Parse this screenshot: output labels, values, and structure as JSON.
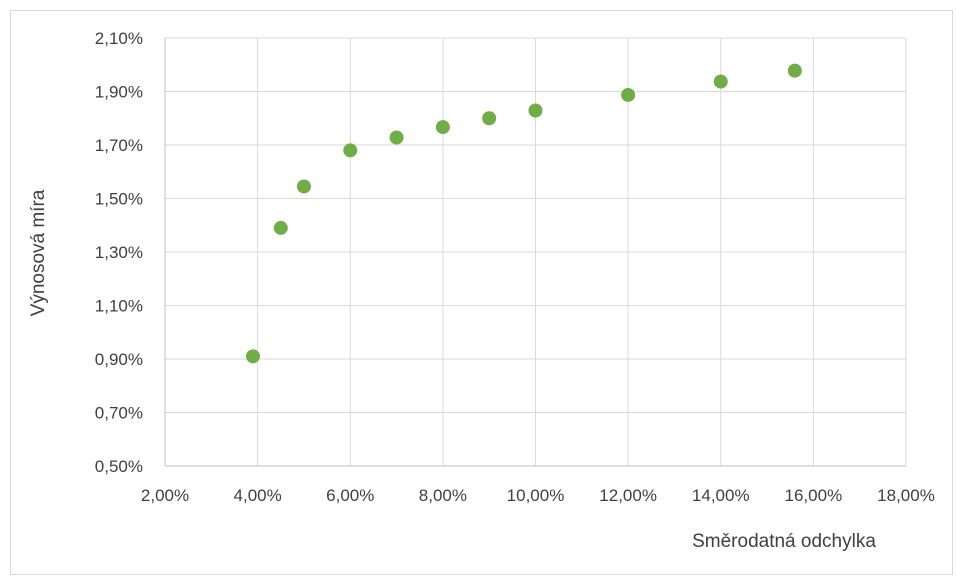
{
  "chart_data": {
    "type": "scatter",
    "title": "",
    "xlabel": "Směrodatná odchylka",
    "ylabel": "Výnosová míra",
    "xlim": [
      0.02,
      0.18
    ],
    "ylim": [
      0.005,
      0.021
    ],
    "x_ticks": [
      0.02,
      0.04,
      0.06,
      0.08,
      0.1,
      0.12,
      0.14,
      0.16,
      0.18
    ],
    "y_ticks": [
      0.005,
      0.007,
      0.009,
      0.011,
      0.013,
      0.015,
      0.017,
      0.019,
      0.021
    ],
    "x_tick_labels": [
      "2,00%",
      "4,00%",
      "6,00%",
      "8,00%",
      "10,00%",
      "12,00%",
      "14,00%",
      "16,00%",
      "18,00%"
    ],
    "y_tick_labels": [
      "0,50%",
      "0,70%",
      "0,90%",
      "1,10%",
      "1,30%",
      "1,50%",
      "1,70%",
      "1,90%",
      "2,10%"
    ],
    "grid": true,
    "marker_color": "#70ad47",
    "points": [
      {
        "x": 0.039,
        "y": 0.0091
      },
      {
        "x": 0.045,
        "y": 0.0139
      },
      {
        "x": 0.05,
        "y": 0.01545
      },
      {
        "x": 0.06,
        "y": 0.0168
      },
      {
        "x": 0.07,
        "y": 0.01728
      },
      {
        "x": 0.08,
        "y": 0.01767
      },
      {
        "x": 0.09,
        "y": 0.018
      },
      {
        "x": 0.1,
        "y": 0.01829
      },
      {
        "x": 0.12,
        "y": 0.01887
      },
      {
        "x": 0.14,
        "y": 0.01937
      },
      {
        "x": 0.156,
        "y": 0.01978
      }
    ]
  }
}
